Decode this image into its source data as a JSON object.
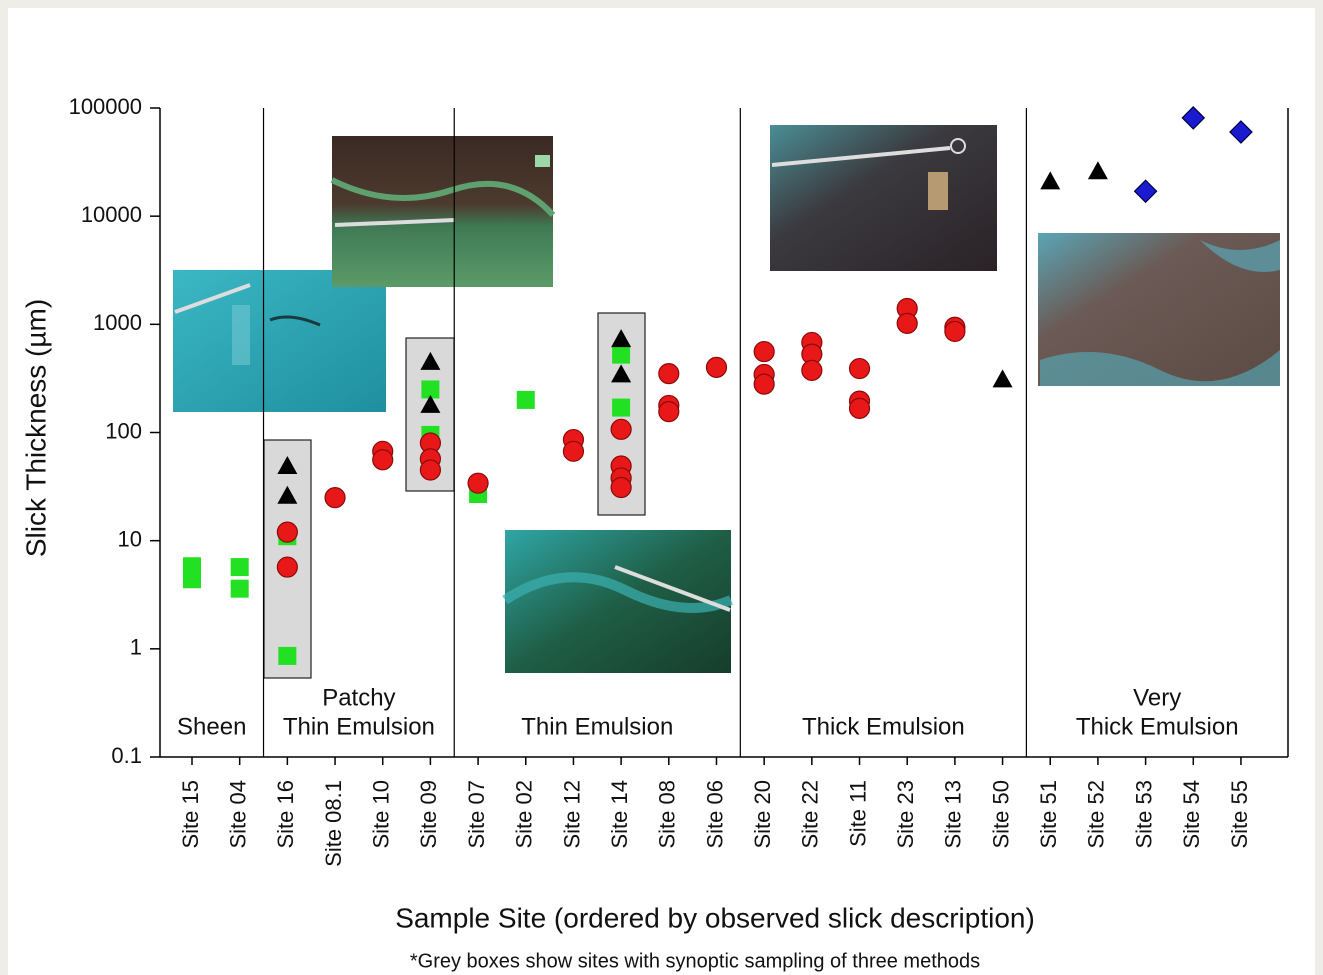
{
  "chart_data": {
    "type": "scatter",
    "y_label": "Slick Thickness (µm)",
    "x_label": "Sample Site (ordered by observed slick description)",
    "footnote": "*Grey boxes show sites with synoptic sampling of three methods",
    "categories": [
      "Site 15",
      "Site 04",
      "Site 16",
      "Site 08.1",
      "Site 10",
      "Site 09",
      "Site 07",
      "Site 02",
      "Site 12",
      "Site 14",
      "Site 08",
      "Site 06",
      "Site 20",
      "Site 22",
      "Site 11",
      "Site 23",
      "Site 13",
      "Site 50",
      "Site 51",
      "Site 52",
      "Site 53",
      "Site 54",
      "Site 55"
    ],
    "regions": [
      [
        "Sheen"
      ],
      [
        "Patchy",
        "Thin Emulsion"
      ],
      [
        "Thin Emulsion"
      ],
      [
        "Thick Emulsion"
      ],
      [
        "Very",
        "Thick Emulsion"
      ]
    ],
    "ylim": [
      0.1,
      100000
    ],
    "yticks": [
      0.1,
      1,
      10,
      100,
      1000,
      10000,
      100000
    ],
    "log_y": true,
    "series": [
      {
        "marker": "square",
        "color": "#22e022",
        "x": [
          "Site 15",
          "Site 15",
          "Site 04",
          "Site 04",
          "Site 16",
          "Site 16",
          "Site 09",
          "Site 09",
          "Site 07",
          "Site 02",
          "Site 14",
          "Site 14"
        ],
        "values": [
          5.8,
          4.4,
          5.7,
          3.6,
          11,
          0.86,
          250,
          95,
          27,
          200,
          525,
          170
        ]
      },
      {
        "marker": "circle",
        "color": "#e81818",
        "x": [
          "Site 16",
          "Site 16",
          "Site 08.1",
          "Site 10",
          "Site 10",
          "Site 09",
          "Site 09",
          "Site 09",
          "Site 07",
          "Site 12",
          "Site 12",
          "Site 14",
          "Site 14",
          "Site 14",
          "Site 14",
          "Site 08",
          "Site 08",
          "Site 08",
          "Site 06",
          "Site 20",
          "Site 20",
          "Site 20",
          "Site 22",
          "Site 22",
          "Site 22",
          "Site 11",
          "Site 11",
          "Site 11",
          "Site 23",
          "Site 23",
          "Site 13",
          "Site 13"
        ],
        "values": [
          12,
          5.7,
          25,
          67,
          56,
          80,
          57,
          45,
          34,
          86,
          67,
          107,
          49,
          38,
          31,
          350,
          178,
          156,
          400,
          560,
          344,
          280,
          680,
          530,
          375,
          390,
          195,
          167,
          1400,
          1020,
          940,
          860
        ]
      },
      {
        "marker": "triangle",
        "color": "#000000",
        "x": [
          "Site 16",
          "Site 16",
          "Site 09",
          "Site 09",
          "Site 14",
          "Site 14",
          "Site 50",
          "Site 51",
          "Site 52"
        ],
        "values": [
          49,
          26,
          450,
          180,
          730,
          345,
          310,
          21000,
          26000
        ]
      },
      {
        "marker": "diamond",
        "color": "#1a1ad0",
        "x": [
          "Site 53",
          "Site 54",
          "Site 55"
        ],
        "values": [
          17000,
          81000,
          60000
        ]
      }
    ]
  }
}
